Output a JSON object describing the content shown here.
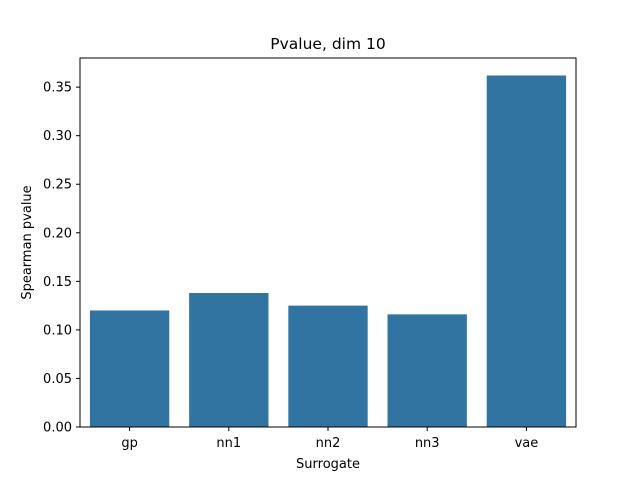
{
  "chart_data": {
    "type": "bar",
    "title": "Pvalue, dim 10",
    "xlabel": "Surrogate",
    "ylabel": "Spearman pvalue",
    "categories": [
      "gp",
      "nn1",
      "nn2",
      "nn3",
      "vae"
    ],
    "values": [
      0.12,
      0.138,
      0.125,
      0.116,
      0.362
    ],
    "ylim": [
      0,
      0.38
    ],
    "yticks": [
      0.0,
      0.05,
      0.1,
      0.15,
      0.2,
      0.25,
      0.3,
      0.35
    ],
    "ytick_labels": [
      "0.00",
      "0.05",
      "0.10",
      "0.15",
      "0.20",
      "0.25",
      "0.30",
      "0.35"
    ],
    "grid": false,
    "bar_color": "#3274a1"
  }
}
